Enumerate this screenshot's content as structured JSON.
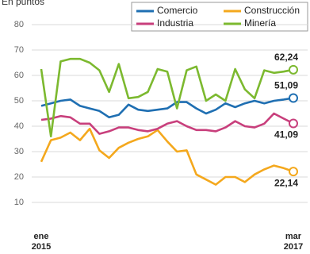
{
  "chart_data": {
    "type": "line",
    "title": "En puntos",
    "categories": [
      "ene\n2015",
      null,
      null,
      null,
      null,
      null,
      null,
      null,
      null,
      null,
      null,
      null,
      null,
      null,
      null,
      null,
      null,
      null,
      null,
      null,
      null,
      null,
      null,
      null,
      null,
      null,
      "mar\n2017"
    ],
    "ylim": [
      10,
      80
    ],
    "yticks": [
      10,
      20,
      30,
      40,
      50,
      60,
      70,
      80
    ],
    "grid": true,
    "series": [
      {
        "name": "Comercio",
        "color": "#1f6fb2",
        "values": [
          48,
          49,
          50,
          50.5,
          48,
          47,
          46,
          43.5,
          44.5,
          48.5,
          46.5,
          46,
          46.5,
          47,
          49.5,
          49.5,
          47,
          45,
          46.5,
          49,
          47.5,
          49,
          50,
          49,
          50,
          50.5,
          51.09
        ],
        "value_labels": [
          null,
          null,
          null,
          null,
          null,
          null,
          null,
          null,
          null,
          null,
          null,
          null,
          null,
          null,
          null,
          null,
          null,
          null,
          null,
          null,
          null,
          null,
          null,
          null,
          null,
          null,
          "51,09"
        ]
      },
      {
        "name": "Construcción",
        "color": "#f4a81d",
        "values": [
          26,
          34.5,
          35.5,
          37.5,
          34.5,
          39,
          30.5,
          27.5,
          31.5,
          33.5,
          35,
          36,
          38.5,
          34,
          30,
          30.5,
          21,
          19,
          17,
          20,
          20,
          18,
          21,
          23,
          24.5,
          23.5,
          22.14
        ],
        "value_labels": [
          null,
          null,
          null,
          null,
          null,
          null,
          null,
          null,
          null,
          null,
          null,
          null,
          null,
          null,
          null,
          null,
          null,
          null,
          null,
          null,
          null,
          null,
          null,
          null,
          null,
          null,
          "22,14"
        ]
      },
      {
        "name": "Industria",
        "color": "#c83f7c",
        "values": [
          42.5,
          43,
          44,
          43.5,
          41,
          41,
          37,
          38,
          39.5,
          39.5,
          38.5,
          38,
          39,
          41,
          42,
          40,
          38.5,
          38.5,
          38,
          39.5,
          42,
          40,
          39.5,
          41,
          45,
          43,
          41.09
        ],
        "value_labels": [
          null,
          null,
          null,
          null,
          null,
          null,
          null,
          null,
          null,
          null,
          null,
          null,
          null,
          null,
          null,
          null,
          null,
          null,
          null,
          null,
          null,
          null,
          null,
          null,
          null,
          null,
          "41,09"
        ]
      },
      {
        "name": "Minería",
        "color": "#7cb92f",
        "values": [
          62.5,
          36,
          65.5,
          66.5,
          66.5,
          65,
          62,
          53.5,
          64.5,
          51,
          51.5,
          53.5,
          62.5,
          61.5,
          47,
          62,
          63.5,
          50,
          52.5,
          50,
          62.5,
          54.5,
          51,
          62,
          61,
          61.5,
          62.24
        ],
        "value_labels": [
          null,
          null,
          null,
          null,
          null,
          null,
          null,
          null,
          null,
          null,
          null,
          null,
          null,
          null,
          null,
          null,
          null,
          null,
          null,
          null,
          null,
          null,
          null,
          null,
          null,
          null,
          "62,24"
        ]
      }
    ]
  }
}
